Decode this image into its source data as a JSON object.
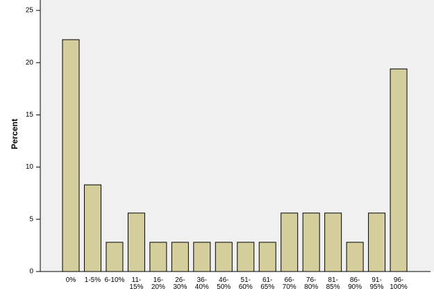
{
  "chart_data": {
    "type": "bar",
    "y_label": "Percent",
    "categories": [
      "0%",
      "1-5%",
      "6-10%",
      "11-\n15%",
      "16-\n20%",
      "26-\n30%",
      "36-\n40%",
      "46-\n50%",
      "51-\n60%",
      "61-\n65%",
      "66-\n70%",
      "76-\n80%",
      "81-\n85%",
      "86-\n90%",
      "91-\n95%",
      "96-\n100%"
    ],
    "values": [
      22.2,
      8.3,
      2.8,
      5.6,
      2.8,
      2.8,
      2.8,
      2.8,
      2.8,
      2.8,
      5.6,
      5.6,
      5.6,
      2.8,
      5.6,
      19.4
    ],
    "color": "#d3ce9b",
    "ylim": [
      0,
      25
    ],
    "yticks": [
      0,
      5,
      10,
      15,
      20,
      25
    ],
    "grid": false
  }
}
